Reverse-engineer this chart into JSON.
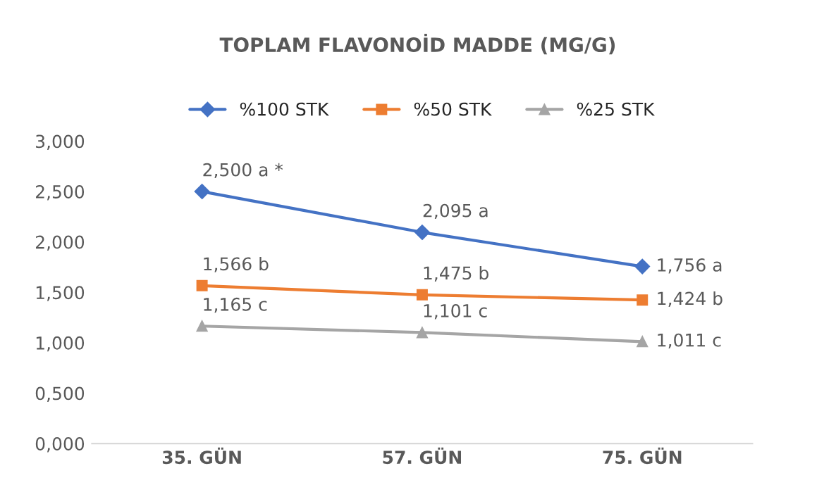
{
  "chart_data": {
    "type": "line",
    "title": "TOPLAM FLAVONOİD MADDE (MG/G)",
    "categories": [
      "35. GÜN",
      "57. GÜN",
      "75. GÜN"
    ],
    "series": [
      {
        "name": "%100 STK",
        "color": "#4472c4",
        "marker": "diamond",
        "values": [
          2.5,
          2.095,
          1.756
        ],
        "value_labels": [
          "2,500 a *",
          "2,095 a",
          "1,756 a"
        ]
      },
      {
        "name": "%50 STK",
        "color": "#ed7d31",
        "marker": "square",
        "values": [
          1.566,
          1.475,
          1.424
        ],
        "value_labels": [
          "1,566 b",
          "1,475 b",
          "1,424 b"
        ]
      },
      {
        "name": "%25 STK",
        "color": "#a5a5a5",
        "marker": "triangle",
        "values": [
          1.165,
          1.101,
          1.011
        ],
        "value_labels": [
          "1,165 c",
          "1,101 c",
          "1,011 c"
        ]
      }
    ],
    "ylim": [
      0,
      3
    ],
    "yticks": [
      {
        "value": 0,
        "label": "0,000"
      },
      {
        "value": 0.5,
        "label": "0,500"
      },
      {
        "value": 1,
        "label": "1,000"
      },
      {
        "value": 1.5,
        "label": "1,500"
      },
      {
        "value": 2,
        "label": "2,000"
      },
      {
        "value": 2.5,
        "label": "2,500"
      },
      {
        "value": 3,
        "label": "3,000"
      }
    ],
    "legend": "top",
    "line_style": "solid",
    "grid": false
  }
}
